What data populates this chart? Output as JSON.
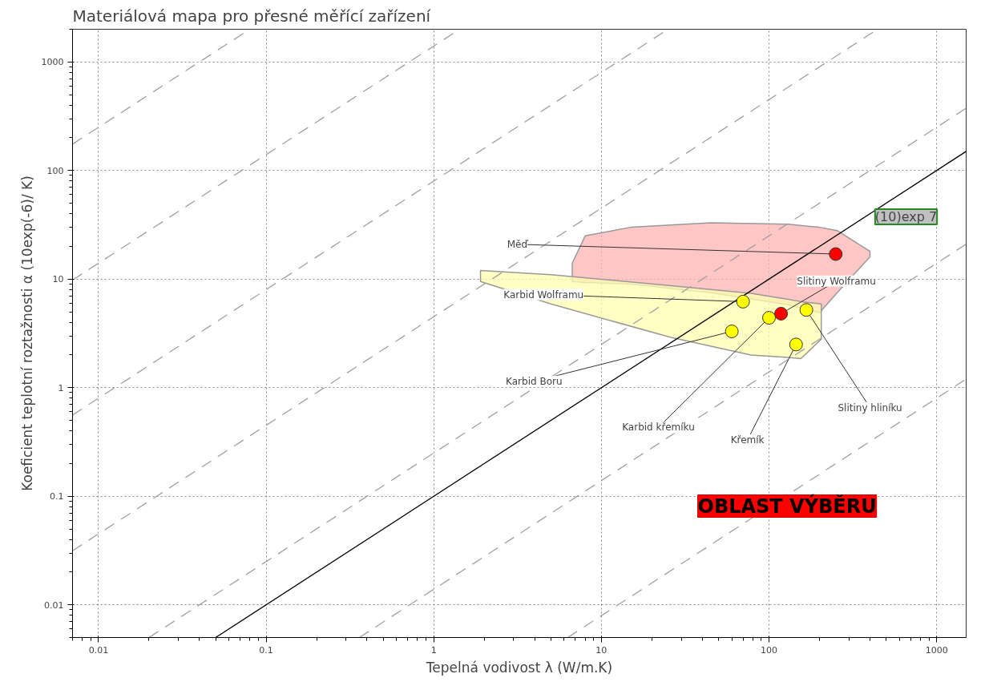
{
  "chart_data": {
    "type": "scatter",
    "title": "Materiálová mapa pro přesné měřící zařízení",
    "xlabel": "Tepelná vodivost λ (W/m.K)",
    "ylabel": "Koeficient teplotní roztažnosti α (10exp(-6)/ K)",
    "log": "xy",
    "grid": true,
    "xlim": [
      0.007,
      1500
    ],
    "ylim": [
      0.005,
      2000
    ],
    "xticks": [
      0.01,
      0.1,
      1,
      10,
      100,
      1000
    ],
    "yticks": [
      0.01,
      0.1,
      1,
      10,
      100,
      1000
    ],
    "series": [
      {
        "type": "area",
        "color": "#ffb3b3",
        "x": [
          6.7,
          8,
          15,
          45,
          130,
          200,
          255,
          400,
          400,
          255,
          200,
          130,
          45,
          15,
          8,
          6.7
        ],
        "values": [
          14,
          25,
          30,
          33,
          32,
          30,
          28,
          18,
          16,
          7.5,
          4.9,
          5.8,
          7.5,
          9,
          9.3,
          9.5
        ]
      },
      {
        "type": "area",
        "color": "#ffffb0",
        "x": [
          1.9,
          5,
          26,
          78,
          130,
          155,
          205,
          205,
          155,
          130,
          78,
          26,
          5,
          1.9
        ],
        "values": [
          12,
          11,
          8.7,
          7.4,
          6.5,
          6.2,
          5.9,
          2.8,
          1.85,
          1.9,
          2.0,
          2.9,
          5.9,
          9.5
        ]
      },
      {
        "type": "line",
        "color": "#a0a0a0",
        "line_style": "dashed",
        "x": [
          0.007,
          0.08
        ],
        "values": [
          175,
          2000
        ]
      },
      {
        "type": "line",
        "color": "#a0a0a0",
        "line_style": "dashed",
        "x": [
          0.007,
          1.4
        ],
        "values": [
          9.8,
          1960
        ]
      },
      {
        "type": "line",
        "color": "#a0a0a0",
        "line_style": "dashed",
        "x": [
          0.007,
          25
        ],
        "values": [
          0.56,
          2000
        ]
      },
      {
        "type": "line",
        "color": "#a0a0a0",
        "line_style": "dashed",
        "x": [
          0.007,
          440
        ],
        "values": [
          0.0315,
          1980
        ]
      },
      {
        "type": "line",
        "color": "#a0a0a0",
        "line_style": "dashed",
        "x": [
          0.02,
          1500
        ],
        "values": [
          0.005,
          375
        ]
      },
      {
        "type": "line",
        "color": "#a0a0a0",
        "line_style": "dashed",
        "x": [
          0.36,
          1500
        ],
        "values": [
          0.005,
          21
        ]
      },
      {
        "type": "line",
        "color": "#a0a0a0",
        "line_style": "dashed",
        "x": [
          6.3,
          1500
        ],
        "values": [
          0.005,
          1.2
        ]
      },
      {
        "type": "line",
        "color": "#000000",
        "line_style": "solid",
        "x": [
          0.05,
          1500
        ],
        "values": [
          0.005,
          150
        ]
      },
      {
        "marker": "circle",
        "name": "Měď",
        "color": "#ff0000",
        "x": [
          250
        ],
        "values": [
          17
        ]
      },
      {
        "marker": "circle",
        "name": "Karbid Wolframu",
        "color": "#ffff00",
        "x": [
          70
        ],
        "values": [
          6.2
        ]
      },
      {
        "marker": "circle",
        "name": "Slitiny Wolframu",
        "color": "#ff0000",
        "x": [
          118
        ],
        "values": [
          4.8
        ]
      },
      {
        "marker": "circle",
        "name": "Karbid Boru",
        "color": "#ffff00",
        "x": [
          60
        ],
        "values": [
          3.3
        ]
      },
      {
        "marker": "circle",
        "name": "Karbid křemíku",
        "color": "#ffff00",
        "x": [
          100
        ],
        "values": [
          4.4
        ]
      },
      {
        "marker": "circle",
        "name": "Křemík",
        "color": "#ffff00",
        "x": [
          145
        ],
        "values": [
          2.5
        ]
      },
      {
        "marker": "circle",
        "name": "Slitiny hliníku",
        "color": "#ffff00",
        "x": [
          167
        ],
        "values": [
          5.2
        ]
      }
    ],
    "annotations": [
      "(10)exp 7",
      "OBLAST VÝBĚRU"
    ]
  }
}
